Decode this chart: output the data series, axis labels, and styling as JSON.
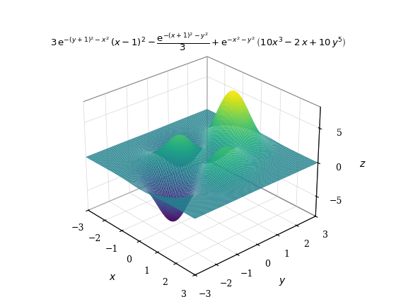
{
  "title": "$3\\,\\mathrm{e}^{-(y+1)^2-x^2}\\,(x-1)^2 - \\dfrac{\\mathrm{e}^{-(x+1)^2-y^2}}{3} + \\mathrm{e}^{-x^2-y^2}\\,\\left(10x^3 - 2\\,x + 10\\,y^5\\right)$",
  "xlabel": "$x$",
  "ylabel": "$y$",
  "zlabel": "$z$",
  "x_range": [
    -3,
    3
  ],
  "y_range": [
    -3,
    3
  ],
  "n_points": 100,
  "elev": 28,
  "azim": -42,
  "colormap": "viridis",
  "alpha": 1.0,
  "figsize": [
    5.6,
    4.2
  ],
  "dpi": 100,
  "xticks": [
    -3,
    -2,
    -1,
    0,
    1,
    2,
    3
  ],
  "yticks": [
    -3,
    -2,
    -1,
    0,
    1,
    2,
    3
  ],
  "zticks": [
    -5,
    0,
    5
  ],
  "zlim": [
    -8,
    8
  ]
}
